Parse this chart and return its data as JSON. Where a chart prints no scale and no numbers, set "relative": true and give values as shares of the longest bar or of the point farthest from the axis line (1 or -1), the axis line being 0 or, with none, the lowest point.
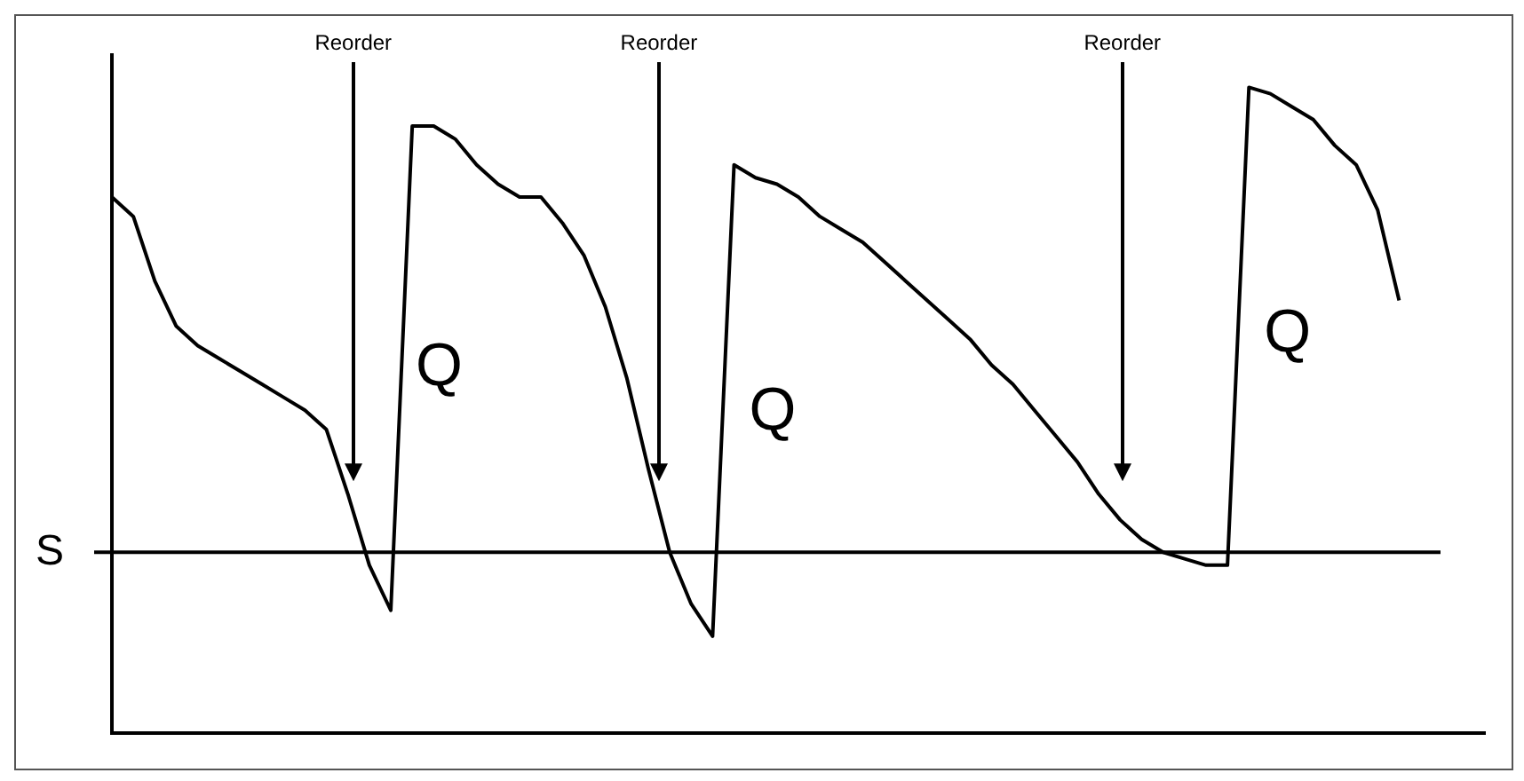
{
  "chart_data": {
    "type": "line",
    "relative": true,
    "color": "#000000",
    "grid": false,
    "legend": false,
    "marker": "none",
    "categories": [
      null,
      null,
      null,
      null,
      null,
      null,
      null,
      null,
      null,
      null,
      null,
      null,
      null,
      null,
      null,
      null,
      null,
      null,
      null,
      null,
      null,
      null,
      null,
      null,
      null,
      null,
      null,
      null,
      null,
      null,
      null,
      null,
      null,
      null,
      null,
      null,
      null,
      null,
      null,
      null,
      null,
      null,
      null,
      null,
      null,
      null,
      null,
      null,
      null,
      null,
      null,
      null,
      null,
      null,
      null,
      null,
      null,
      null,
      null,
      null,
      null,
      null,
      null,
      null,
      null
    ],
    "values": [
      0.83,
      0.8,
      0.7,
      0.63,
      0.6,
      0.58,
      0.56,
      0.54,
      0.52,
      0.5,
      0.47,
      0.37,
      0.26,
      0.19,
      0.94,
      0.94,
      0.92,
      0.88,
      0.85,
      0.83,
      0.83,
      0.79,
      0.74,
      0.66,
      0.55,
      0.41,
      0.28,
      0.2,
      0.15,
      0.88,
      0.86,
      0.85,
      0.83,
      0.8,
      0.78,
      0.76,
      0.73,
      0.7,
      0.67,
      0.64,
      0.61,
      0.57,
      0.54,
      0.5,
      0.46,
      0.42,
      0.37,
      0.33,
      0.3,
      0.28,
      0.27,
      0.26,
      0.26,
      1,
      0.99,
      0.97,
      0.95,
      0.91,
      0.88,
      0.81,
      0.67,
      null,
      null,
      null,
      null
    ],
    "ref_lines": [
      {
        "axis": "y",
        "value": 0.28,
        "label": "S",
        "color": "#000000"
      }
    ],
    "annotations": [
      "Reorder",
      "Reorder",
      "Reorder",
      "Q",
      "Q",
      "Q"
    ]
  }
}
